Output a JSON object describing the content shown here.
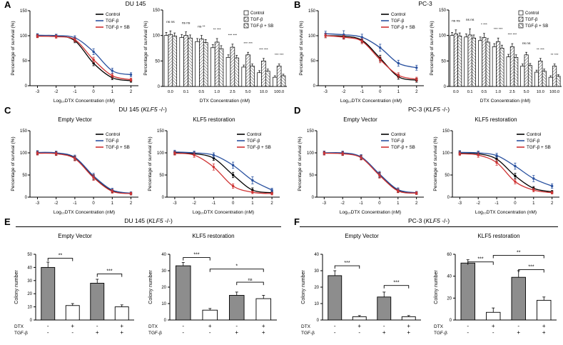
{
  "panels": {
    "A": {
      "label": "A",
      "title": "DU 145"
    },
    "B": {
      "label": "B",
      "title": "PC-3"
    },
    "C": {
      "label": "C",
      "title_pre": "DU 145 (",
      "title_italic": "KLF5",
      "title_post": " -/-)",
      "subtitle1": "Empty Vector",
      "subtitle2": "KLF5 restoration"
    },
    "D": {
      "label": "D",
      "title_pre": "PC-3 (",
      "title_italic": "KLF5",
      "title_post": " -/-)",
      "subtitle1": "Empty Vector",
      "subtitle2": "KLF5 restoration"
    },
    "E": {
      "label": "E",
      "title_pre": "DU 145 (",
      "title_italic": "KLF5",
      "title_post": " -/-)",
      "subtitle1": "Empty Vector",
      "subtitle2": "KLF5 restoration"
    },
    "F": {
      "label": "F",
      "title_pre": "PC-3 (",
      "title_italic": "KLF5",
      "title_post": " -/-)",
      "subtitle1": "Empty Vector",
      "subtitle2": "KLF5 restoration"
    }
  },
  "colors": {
    "control": "#000000",
    "tgfb": "#2a52a0",
    "tgfb_sb": "#cf3333",
    "bar_gray": "#8d8d8d"
  },
  "chart_data": [
    {
      "id": "chart-a-line",
      "type": "line",
      "xlabel": "Log₁₀DTX Concentration (nM)",
      "ylabel": "Percentage of survival (%)",
      "xlim": [
        -3.4,
        2.4
      ],
      "ylim": [
        0,
        150
      ],
      "xticks": [
        -3,
        -2,
        -1,
        0,
        1,
        2
      ],
      "yticks": [
        0,
        50,
        100,
        150
      ],
      "x": [
        -3,
        -2,
        -1,
        0,
        1,
        2
      ],
      "series": [
        {
          "name": "Control",
          "color": "#000000",
          "values": [
            100,
            100,
            90,
            45,
            16,
            10
          ],
          "err": [
            3,
            3,
            4,
            5,
            4,
            3
          ]
        },
        {
          "name": "TGF-β",
          "color": "#2a52a0",
          "values": [
            101,
            100,
            96,
            68,
            30,
            22
          ],
          "err": [
            3,
            3,
            4,
            6,
            5,
            4
          ]
        },
        {
          "name": "TGF-β + SB",
          "color": "#cf3333",
          "values": [
            99,
            98,
            92,
            52,
            20,
            12
          ],
          "err": [
            3,
            3,
            4,
            5,
            4,
            3
          ]
        }
      ],
      "legend": true
    },
    {
      "id": "chart-a-bar",
      "type": "groupbar",
      "xlabel": "DTX Concentration (nM)",
      "ylabel": "Percentage of survival (%)",
      "ylim": [
        0,
        150
      ],
      "yticks": [
        0,
        50,
        100,
        150
      ],
      "categories": [
        "0.0",
        "0.1",
        "0.5",
        "1.0",
        "2.5",
        "5.0",
        "10.0",
        "100.0"
      ],
      "series": [
        {
          "name": "Control",
          "fill": "white",
          "values": [
            100,
            96,
            88,
            76,
            57,
            38,
            27,
            18
          ],
          "err": [
            6,
            6,
            6,
            6,
            5,
            4,
            4,
            3
          ]
        },
        {
          "name": "TGF-β",
          "fill": "hatch1",
          "values": [
            102,
            100,
            93,
            87,
            77,
            62,
            50,
            40
          ],
          "err": [
            7,
            7,
            7,
            7,
            6,
            5,
            5,
            4
          ]
        },
        {
          "name": "TGF-β + SB",
          "fill": "hatch2",
          "values": [
            99,
            95,
            86,
            74,
            56,
            40,
            30,
            21
          ],
          "err": [
            6,
            6,
            6,
            6,
            5,
            4,
            4,
            3
          ]
        }
      ],
      "sig": [
        "ns ns",
        "ns ns",
        "ns **",
        "** ***",
        "*** ***",
        "*** ***",
        "*** ***",
        "*** ***"
      ],
      "legend": true
    },
    {
      "id": "chart-b-line",
      "type": "line",
      "xlabel": "Log₁₀DTX Concentration (nM)",
      "ylabel": "Percentage of survival (%)",
      "xlim": [
        -3.4,
        2.4
      ],
      "ylim": [
        0,
        150
      ],
      "xticks": [
        -3,
        -2,
        -1,
        0,
        1,
        2
      ],
      "yticks": [
        0,
        50,
        100,
        150
      ],
      "x": [
        -3,
        -2,
        -1,
        0,
        1,
        2
      ],
      "series": [
        {
          "name": "Control",
          "color": "#000000",
          "values": [
            100,
            99,
            91,
            55,
            18,
            11
          ],
          "err": [
            4,
            4,
            5,
            6,
            5,
            4
          ]
        },
        {
          "name": "TGF-β",
          "color": "#2a52a0",
          "values": [
            104,
            102,
            97,
            76,
            45,
            36
          ],
          "err": [
            5,
            8,
            6,
            7,
            6,
            5
          ]
        },
        {
          "name": "TGF-β + SB",
          "color": "#cf3333",
          "values": [
            100,
            97,
            89,
            52,
            21,
            13
          ],
          "err": [
            4,
            4,
            5,
            6,
            5,
            4
          ]
        }
      ],
      "legend": true
    },
    {
      "id": "chart-b-bar",
      "type": "groupbar",
      "xlabel": "DTX Concentration (nM)",
      "ylabel": "Percentage of survival (%)",
      "ylim": [
        0,
        150
      ],
      "yticks": [
        0,
        50,
        100,
        150
      ],
      "categories": [
        "0.0",
        "0.1",
        "0.5",
        "1.0",
        "2.5",
        "5.0",
        "10.0",
        "100.0"
      ],
      "series": [
        {
          "name": "Control",
          "fill": "white",
          "values": [
            100,
            97,
            90,
            78,
            58,
            40,
            28,
            18
          ],
          "err": [
            6,
            6,
            7,
            6,
            5,
            4,
            4,
            3
          ]
        },
        {
          "name": "TGF-β",
          "fill": "hatch1",
          "values": [
            103,
            101,
            96,
            88,
            78,
            62,
            50,
            40
          ],
          "err": [
            8,
            12,
            8,
            7,
            6,
            5,
            5,
            4
          ]
        },
        {
          "name": "TGF-β + SB",
          "fill": "hatch2",
          "values": [
            99,
            95,
            87,
            75,
            57,
            41,
            30,
            20
          ],
          "err": [
            6,
            6,
            7,
            6,
            5,
            4,
            4,
            3
          ]
        }
      ],
      "sig": [
        "ns ns",
        "ns ns",
        "* ***",
        "*** ***",
        "*** ***",
        "ns ns",
        "** ***",
        "** ***"
      ],
      "legend": true
    },
    {
      "id": "chart-c-ev",
      "type": "line",
      "xlabel": "Log₁₀DTX Concentration (nM)",
      "ylabel": "Percentage of survival (%)",
      "xlim": [
        -3.4,
        2.4
      ],
      "ylim": [
        0,
        150
      ],
      "xticks": [
        -3,
        -2,
        -1,
        0,
        1,
        2
      ],
      "yticks": [
        0,
        50,
        100,
        150
      ],
      "x": [
        -3,
        -2,
        -1,
        0,
        1,
        2
      ],
      "series": [
        {
          "name": "Control",
          "color": "#000000",
          "values": [
            100,
            99,
            88,
            45,
            14,
            8
          ],
          "err": [
            4,
            4,
            5,
            6,
            4,
            3
          ]
        },
        {
          "name": "TGF-β",
          "color": "#2a52a0",
          "values": [
            101,
            100,
            90,
            48,
            16,
            9
          ],
          "err": [
            4,
            4,
            5,
            6,
            4,
            3
          ]
        },
        {
          "name": "TGF-β + SB",
          "color": "#cf3333",
          "values": [
            99,
            98,
            87,
            44,
            13,
            8
          ],
          "err": [
            4,
            4,
            5,
            6,
            4,
            3
          ]
        }
      ],
      "legend": true
    },
    {
      "id": "chart-c-kr",
      "type": "line",
      "xlabel": "Log₁₀DTX Concentration (nM)",
      "ylabel": "Percentage of survival (%)",
      "xlim": [
        -3.4,
        2.4
      ],
      "ylim": [
        0,
        150
      ],
      "xticks": [
        -3,
        -2,
        -1,
        0,
        1,
        2
      ],
      "yticks": [
        0,
        50,
        100,
        150
      ],
      "x": [
        -3,
        -2,
        -1,
        0,
        1,
        2
      ],
      "series": [
        {
          "name": "Control",
          "color": "#000000",
          "values": [
            100,
            98,
            88,
            50,
            16,
            10
          ],
          "err": [
            4,
            4,
            5,
            6,
            5,
            3
          ]
        },
        {
          "name": "TGF-β",
          "color": "#2a52a0",
          "values": [
            102,
            100,
            95,
            72,
            38,
            16
          ],
          "err": [
            4,
            4,
            5,
            7,
            8,
            4
          ]
        },
        {
          "name": "TGF-β + SB",
          "color": "#cf3333",
          "values": [
            99,
            95,
            68,
            25,
            11,
            8
          ],
          "err": [
            4,
            5,
            7,
            5,
            3,
            3
          ]
        }
      ],
      "legend": true
    },
    {
      "id": "chart-d-ev",
      "type": "line",
      "xlabel": "Log₁₀DTX Concentration (nM)",
      "ylabel": "Percentage of survival (%)",
      "xlim": [
        -3.4,
        2.4
      ],
      "ylim": [
        0,
        150
      ],
      "xticks": [
        -3,
        -2,
        -1,
        0,
        1,
        2
      ],
      "yticks": [
        0,
        50,
        100,
        150
      ],
      "x": [
        -3,
        -2,
        -1,
        0,
        1,
        2
      ],
      "series": [
        {
          "name": "Control",
          "color": "#000000",
          "values": [
            100,
            99,
            90,
            50,
            15,
            9
          ],
          "err": [
            4,
            4,
            5,
            6,
            4,
            3
          ]
        },
        {
          "name": "TGF-β",
          "color": "#2a52a0",
          "values": [
            100,
            100,
            91,
            52,
            17,
            10
          ],
          "err": [
            4,
            4,
            5,
            6,
            4,
            3
          ]
        },
        {
          "name": "TGF-β + SB",
          "color": "#cf3333",
          "values": [
            99,
            98,
            89,
            49,
            14,
            9
          ],
          "err": [
            4,
            4,
            5,
            6,
            4,
            3
          ]
        }
      ],
      "legend": true
    },
    {
      "id": "chart-d-kr",
      "type": "line",
      "xlabel": "Log₁₀DTX Concentration (nM)",
      "ylabel": "Percentage of survival (%)",
      "xlim": [
        -3.4,
        2.4
      ],
      "ylim": [
        0,
        150
      ],
      "xticks": [
        -3,
        -2,
        -1,
        0,
        1,
        2
      ],
      "yticks": [
        0,
        50,
        100,
        150
      ],
      "x": [
        -3,
        -2,
        -1,
        0,
        1,
        2
      ],
      "series": [
        {
          "name": "Control",
          "color": "#000000",
          "values": [
            100,
            98,
            86,
            48,
            20,
            12
          ],
          "err": [
            4,
            4,
            5,
            6,
            4,
            3
          ]
        },
        {
          "name": "TGF-β",
          "color": "#2a52a0",
          "values": [
            101,
            100,
            94,
            70,
            42,
            25
          ],
          "err": [
            4,
            4,
            5,
            7,
            7,
            5
          ]
        },
        {
          "name": "TGF-β + SB",
          "color": "#cf3333",
          "values": [
            98,
            95,
            78,
            35,
            16,
            10
          ],
          "err": [
            4,
            5,
            6,
            5,
            4,
            3
          ]
        }
      ],
      "legend": true
    },
    {
      "id": "chart-e-ev",
      "type": "quadbar",
      "ylabel": "Colony number",
      "ylim": [
        0,
        50
      ],
      "yticks": [
        0,
        10,
        20,
        30,
        40,
        50
      ],
      "values": [
        40,
        11,
        28,
        10
      ],
      "err": [
        4,
        1.5,
        3,
        1.5
      ],
      "fills": [
        "gray",
        "white",
        "gray",
        "white"
      ],
      "brackets": [
        {
          "from": 0,
          "to": 1,
          "label": "**",
          "y": 47
        },
        {
          "from": 2,
          "to": 3,
          "label": "***",
          "y": 35
        }
      ],
      "rows": [
        {
          "label": "DTX",
          "signs": [
            "-",
            "+",
            "-",
            "+"
          ]
        },
        {
          "label": "TGF-β",
          "signs": [
            "-",
            "-",
            "+",
            "+"
          ]
        }
      ]
    },
    {
      "id": "chart-e-kr",
      "type": "quadbar",
      "ylabel": "Colony number",
      "ylim": [
        0,
        40
      ],
      "yticks": [
        0,
        10,
        20,
        30,
        40
      ],
      "values": [
        33,
        6,
        15,
        13
      ],
      "err": [
        2,
        1,
        2,
        2
      ],
      "fills": [
        "gray",
        "white",
        "gray",
        "white"
      ],
      "brackets": [
        {
          "from": 0,
          "to": 1,
          "label": "***",
          "y": 38
        },
        {
          "from": 1,
          "to": 3,
          "label": "*",
          "y": 31
        },
        {
          "from": 2,
          "to": 3,
          "label": "ns",
          "y": 23
        }
      ],
      "rows": [
        {
          "label": "DTX",
          "signs": [
            "-",
            "+",
            "-",
            "+"
          ]
        },
        {
          "label": "TGF-β",
          "signs": [
            "-",
            "-",
            "+",
            "+"
          ]
        }
      ]
    },
    {
      "id": "chart-f-ev",
      "type": "quadbar",
      "ylabel": "Colony number",
      "ylim": [
        0,
        40
      ],
      "yticks": [
        0,
        10,
        20,
        30,
        40
      ],
      "values": [
        27,
        2,
        14,
        2
      ],
      "err": [
        3,
        0.7,
        3,
        0.7
      ],
      "fills": [
        "gray",
        "white",
        "gray",
        "white"
      ],
      "brackets": [
        {
          "from": 0,
          "to": 1,
          "label": "***",
          "y": 33
        },
        {
          "from": 2,
          "to": 3,
          "label": "***",
          "y": 21
        }
      ],
      "rows": [
        {
          "label": "DTX",
          "signs": [
            "-",
            "+",
            "-",
            "+"
          ]
        },
        {
          "label": "TGF-β",
          "signs": [
            "-",
            "-",
            "+",
            "+"
          ]
        }
      ]
    },
    {
      "id": "chart-f-kr",
      "type": "quadbar",
      "ylabel": "Colony number",
      "ylim": [
        0,
        60
      ],
      "yticks": [
        0,
        20,
        40,
        60
      ],
      "values": [
        52,
        7,
        39,
        18
      ],
      "err": [
        3,
        4,
        6,
        3
      ],
      "fills": [
        "gray",
        "white",
        "gray",
        "white"
      ],
      "brackets": [
        {
          "from": 0,
          "to": 1,
          "label": "***",
          "y": 53
        },
        {
          "from": 1,
          "to": 3,
          "label": "**",
          "y": 59
        },
        {
          "from": 2,
          "to": 3,
          "label": "***",
          "y": 46
        }
      ],
      "rows": [
        {
          "label": "DTX",
          "signs": [
            "-",
            "+",
            "-",
            "+"
          ]
        },
        {
          "label": "TGF-β",
          "signs": [
            "-",
            "-",
            "+",
            "+"
          ]
        }
      ]
    }
  ]
}
